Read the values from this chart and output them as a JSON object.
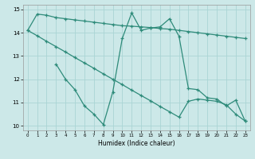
{
  "line1_x": [
    0,
    1,
    2,
    3,
    4,
    5,
    6,
    7,
    8,
    9,
    10,
    11,
    12,
    13,
    14,
    15,
    16,
    17,
    18,
    19,
    20,
    21,
    22,
    23
  ],
  "line1_y": [
    14.1,
    14.8,
    14.75,
    14.65,
    14.6,
    14.55,
    14.5,
    14.45,
    14.4,
    14.35,
    14.3,
    14.28,
    14.25,
    14.22,
    14.18,
    14.15,
    14.1,
    14.05,
    14.0,
    13.95,
    13.9,
    13.85,
    13.8,
    13.75
  ],
  "line2_x": [
    0,
    1,
    2,
    3,
    4,
    5,
    6,
    7,
    8,
    9,
    10,
    11,
    12,
    13,
    14,
    15,
    16,
    17,
    18,
    19,
    20,
    21,
    22,
    23
  ],
  "line2_y": [
    14.1,
    13.87,
    13.63,
    13.4,
    13.17,
    12.93,
    12.7,
    12.47,
    12.23,
    12.0,
    11.77,
    11.53,
    11.3,
    11.07,
    10.83,
    10.6,
    10.37,
    11.05,
    11.15,
    11.1,
    11.05,
    10.9,
    10.5,
    10.2
  ],
  "line3_x": [
    3,
    4,
    5,
    6,
    7,
    8,
    9,
    10,
    11,
    12,
    13,
    14,
    15,
    16,
    17,
    18,
    19,
    20,
    21,
    22,
    23
  ],
  "line3_y": [
    12.65,
    12.0,
    11.55,
    10.85,
    10.5,
    10.05,
    11.45,
    13.75,
    14.85,
    14.1,
    14.2,
    14.25,
    14.6,
    13.85,
    11.6,
    11.55,
    11.2,
    11.15,
    10.85,
    11.1,
    10.2
  ],
  "color": "#2e8b7a",
  "bg_color": "#cce8e8",
  "grid_color": "#aad4d4",
  "xlabel": "Humidex (Indice chaleur)",
  "ylim": [
    9.8,
    15.2
  ],
  "xlim": [
    -0.5,
    23.5
  ],
  "yticks": [
    10,
    11,
    12,
    13,
    14,
    15
  ],
  "xticks": [
    0,
    1,
    2,
    3,
    4,
    5,
    6,
    7,
    8,
    9,
    10,
    11,
    12,
    13,
    14,
    15,
    16,
    17,
    18,
    19,
    20,
    21,
    22,
    23
  ]
}
